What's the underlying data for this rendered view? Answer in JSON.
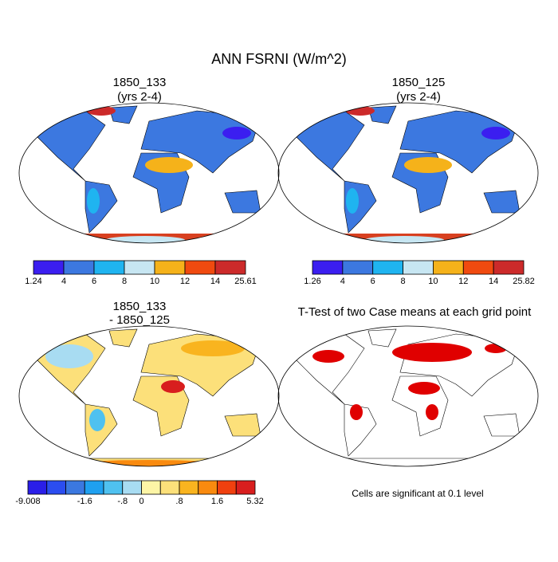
{
  "title": "ANN FSRNI (W/m^2)",
  "panels": [
    {
      "title": "1850_133",
      "subtitle": "(yrs 2-4)",
      "colorbar": {
        "colors": [
          "#3b1ef0",
          "#3c78e0",
          "#1fb4f0",
          "#c7e6f2",
          "#f5b21a",
          "#f04a0f",
          "#cc2a2a"
        ],
        "labels": [
          "1.24",
          "4",
          "6",
          "8",
          "10",
          "12",
          "14",
          "25.61"
        ]
      }
    },
    {
      "title": "1850_125",
      "subtitle": "(yrs 2-4)",
      "colorbar": {
        "colors": [
          "#3b1ef0",
          "#3c78e0",
          "#1fb4f0",
          "#c7e6f2",
          "#f5b21a",
          "#f04a0f",
          "#cc2a2a"
        ],
        "labels": [
          "1.26",
          "4",
          "6",
          "8",
          "10",
          "12",
          "14",
          "25.82"
        ]
      }
    },
    {
      "title": "1850_133",
      "subtitle": "- 1850_125",
      "colorbar": {
        "colors": [
          "#2a1ee8",
          "#2b4df0",
          "#3b78e0",
          "#1fa0f0",
          "#4fc1f0",
          "#a8dcf2",
          "#fdf5a6",
          "#fce07a",
          "#f9b41f",
          "#f98a0f",
          "#f0400f",
          "#d81e1e"
        ],
        "labels": [
          "-9.008",
          null,
          null,
          "-1.6",
          null,
          "-.8",
          "0",
          null,
          ".8",
          null,
          "1.6",
          null,
          "5.32"
        ]
      }
    },
    {
      "title": "T-Test of two Case means at each grid point",
      "note": "Cells are significant at 0.1 level"
    }
  ]
}
